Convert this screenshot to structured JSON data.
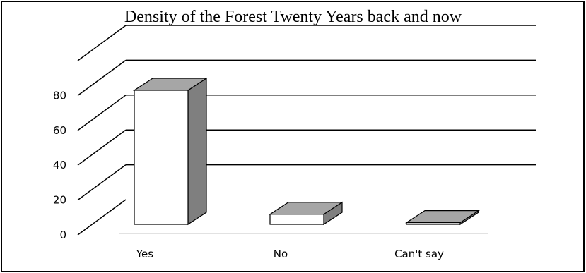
{
  "chart_data": {
    "type": "bar",
    "style": "3d-column",
    "title": "Density of the Forest Twenty Years back and now",
    "categories": [
      "Yes",
      "No",
      "Can't say"
    ],
    "values": [
      80,
      6,
      1
    ],
    "yticks": [
      0,
      20,
      40,
      60,
      80
    ],
    "ylim": [
      0,
      100
    ],
    "grid": true,
    "legend": "none",
    "colors": {
      "front": "#ffffff",
      "top": "#a6a6a6",
      "side": "#7f7f7f",
      "grid": "#000000",
      "floor": "#d9d9d9"
    }
  }
}
